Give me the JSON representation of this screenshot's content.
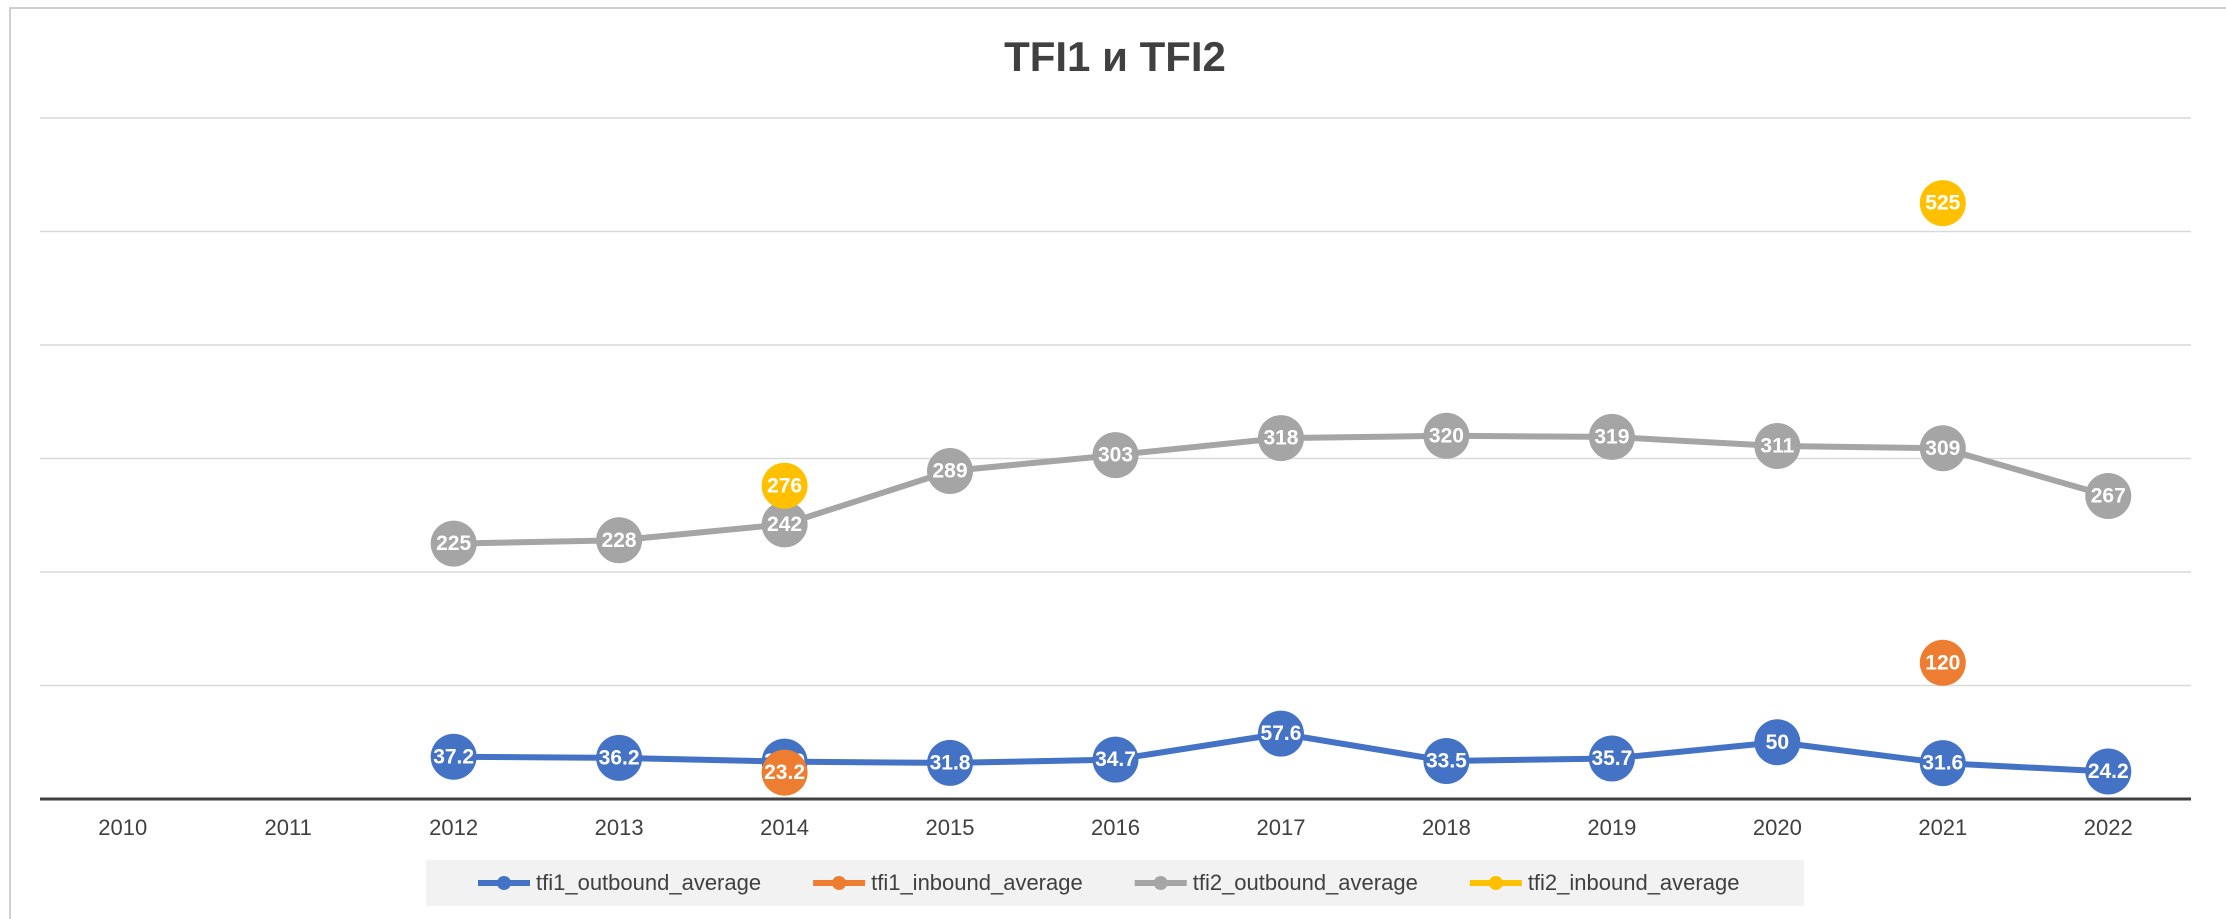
{
  "chart_data": {
    "type": "line",
    "title": "TFI1 и TFI2",
    "categories": [
      "2010",
      "2011",
      "2012",
      "2013",
      "2014",
      "2015",
      "2016",
      "2017",
      "2018",
      "2019",
      "2020",
      "2021",
      "2022"
    ],
    "series": [
      {
        "name": "tfi1_outbound_average",
        "color": "#4472c4",
        "values": [
          null,
          null,
          37.2,
          36.2,
          32.9,
          31.8,
          34.7,
          57.6,
          33.5,
          35.7,
          50,
          31.6,
          24.2
        ]
      },
      {
        "name": "tfi1_inbound_average",
        "color": "#ed7d31",
        "values": [
          null,
          null,
          null,
          null,
          23.2,
          null,
          null,
          null,
          null,
          null,
          null,
          120,
          null
        ]
      },
      {
        "name": "tfi2_outbound_average",
        "color": "#a5a5a5",
        "values": [
          null,
          null,
          225,
          228,
          242,
          289,
          303,
          318,
          320,
          319,
          311,
          309,
          267
        ]
      },
      {
        "name": "tfi2_inbound_average",
        "color": "#ffc000",
        "values": [
          null,
          null,
          null,
          null,
          276,
          null,
          null,
          null,
          null,
          null,
          null,
          525,
          null
        ]
      }
    ],
    "ylim": [
      0,
      600
    ],
    "yticks": [
      0,
      100,
      200,
      300,
      400,
      500,
      600
    ],
    "grid": true
  }
}
